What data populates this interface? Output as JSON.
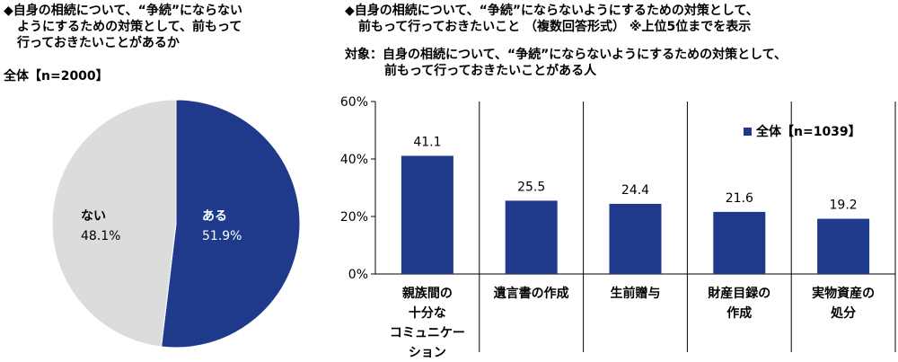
{
  "pie": {
    "title_lines": [
      "◆自身の相続について、“争続”にならない",
      "ようにするための対策として、前もって",
      "行っておきたいことがあるか"
    ],
    "subtitle": "全体【n=2000】"
  },
  "bar": {
    "title_lines": [
      "◆自身の相続について、“争続”にならないようにするための対策として、",
      "前もって行っておきたいこと （複数回答形式） ※上位5位までを表示"
    ],
    "target_lines": [
      "対象：自身の相続について、“争続”にならないようにするための対策として、",
      "前もって行っておきたいことがある人"
    ]
  },
  "chart_data": [
    {
      "type": "pie",
      "slices": [
        {
          "label": "ある",
          "value": 51.9,
          "display": "51.9%",
          "color": "#1F3A8A"
        },
        {
          "label": "ない",
          "value": 48.1,
          "display": "48.1%",
          "color": "#DCDCDC"
        }
      ]
    },
    {
      "type": "bar",
      "categories": [
        "親族間の十分なコミュニケーション",
        "遺言書の作成",
        "生前贈与",
        "財産目録の作成",
        "実物資産の処分"
      ],
      "category_lines": [
        [
          "親族間の",
          "十分な",
          "コミュニケー",
          "ション"
        ],
        [
          "遺言書の作成"
        ],
        [
          "生前贈与"
        ],
        [
          "財産目録の",
          "作成"
        ],
        [
          "実物資産の",
          "処分"
        ]
      ],
      "series": [
        {
          "name": "全体【n=1039】",
          "values": [
            41.1,
            25.5,
            24.4,
            21.6,
            19.2
          ],
          "value_labels": [
            "41.1",
            "25.5",
            "24.4",
            "21.6",
            "19.2"
          ],
          "color": "#1F3A8A"
        }
      ],
      "ylim": [
        0,
        60
      ],
      "yticks": [
        0,
        20,
        40,
        60
      ],
      "ytick_labels": [
        "0%",
        "20%",
        "40%",
        "60%"
      ],
      "legend_position": "top-right"
    }
  ]
}
